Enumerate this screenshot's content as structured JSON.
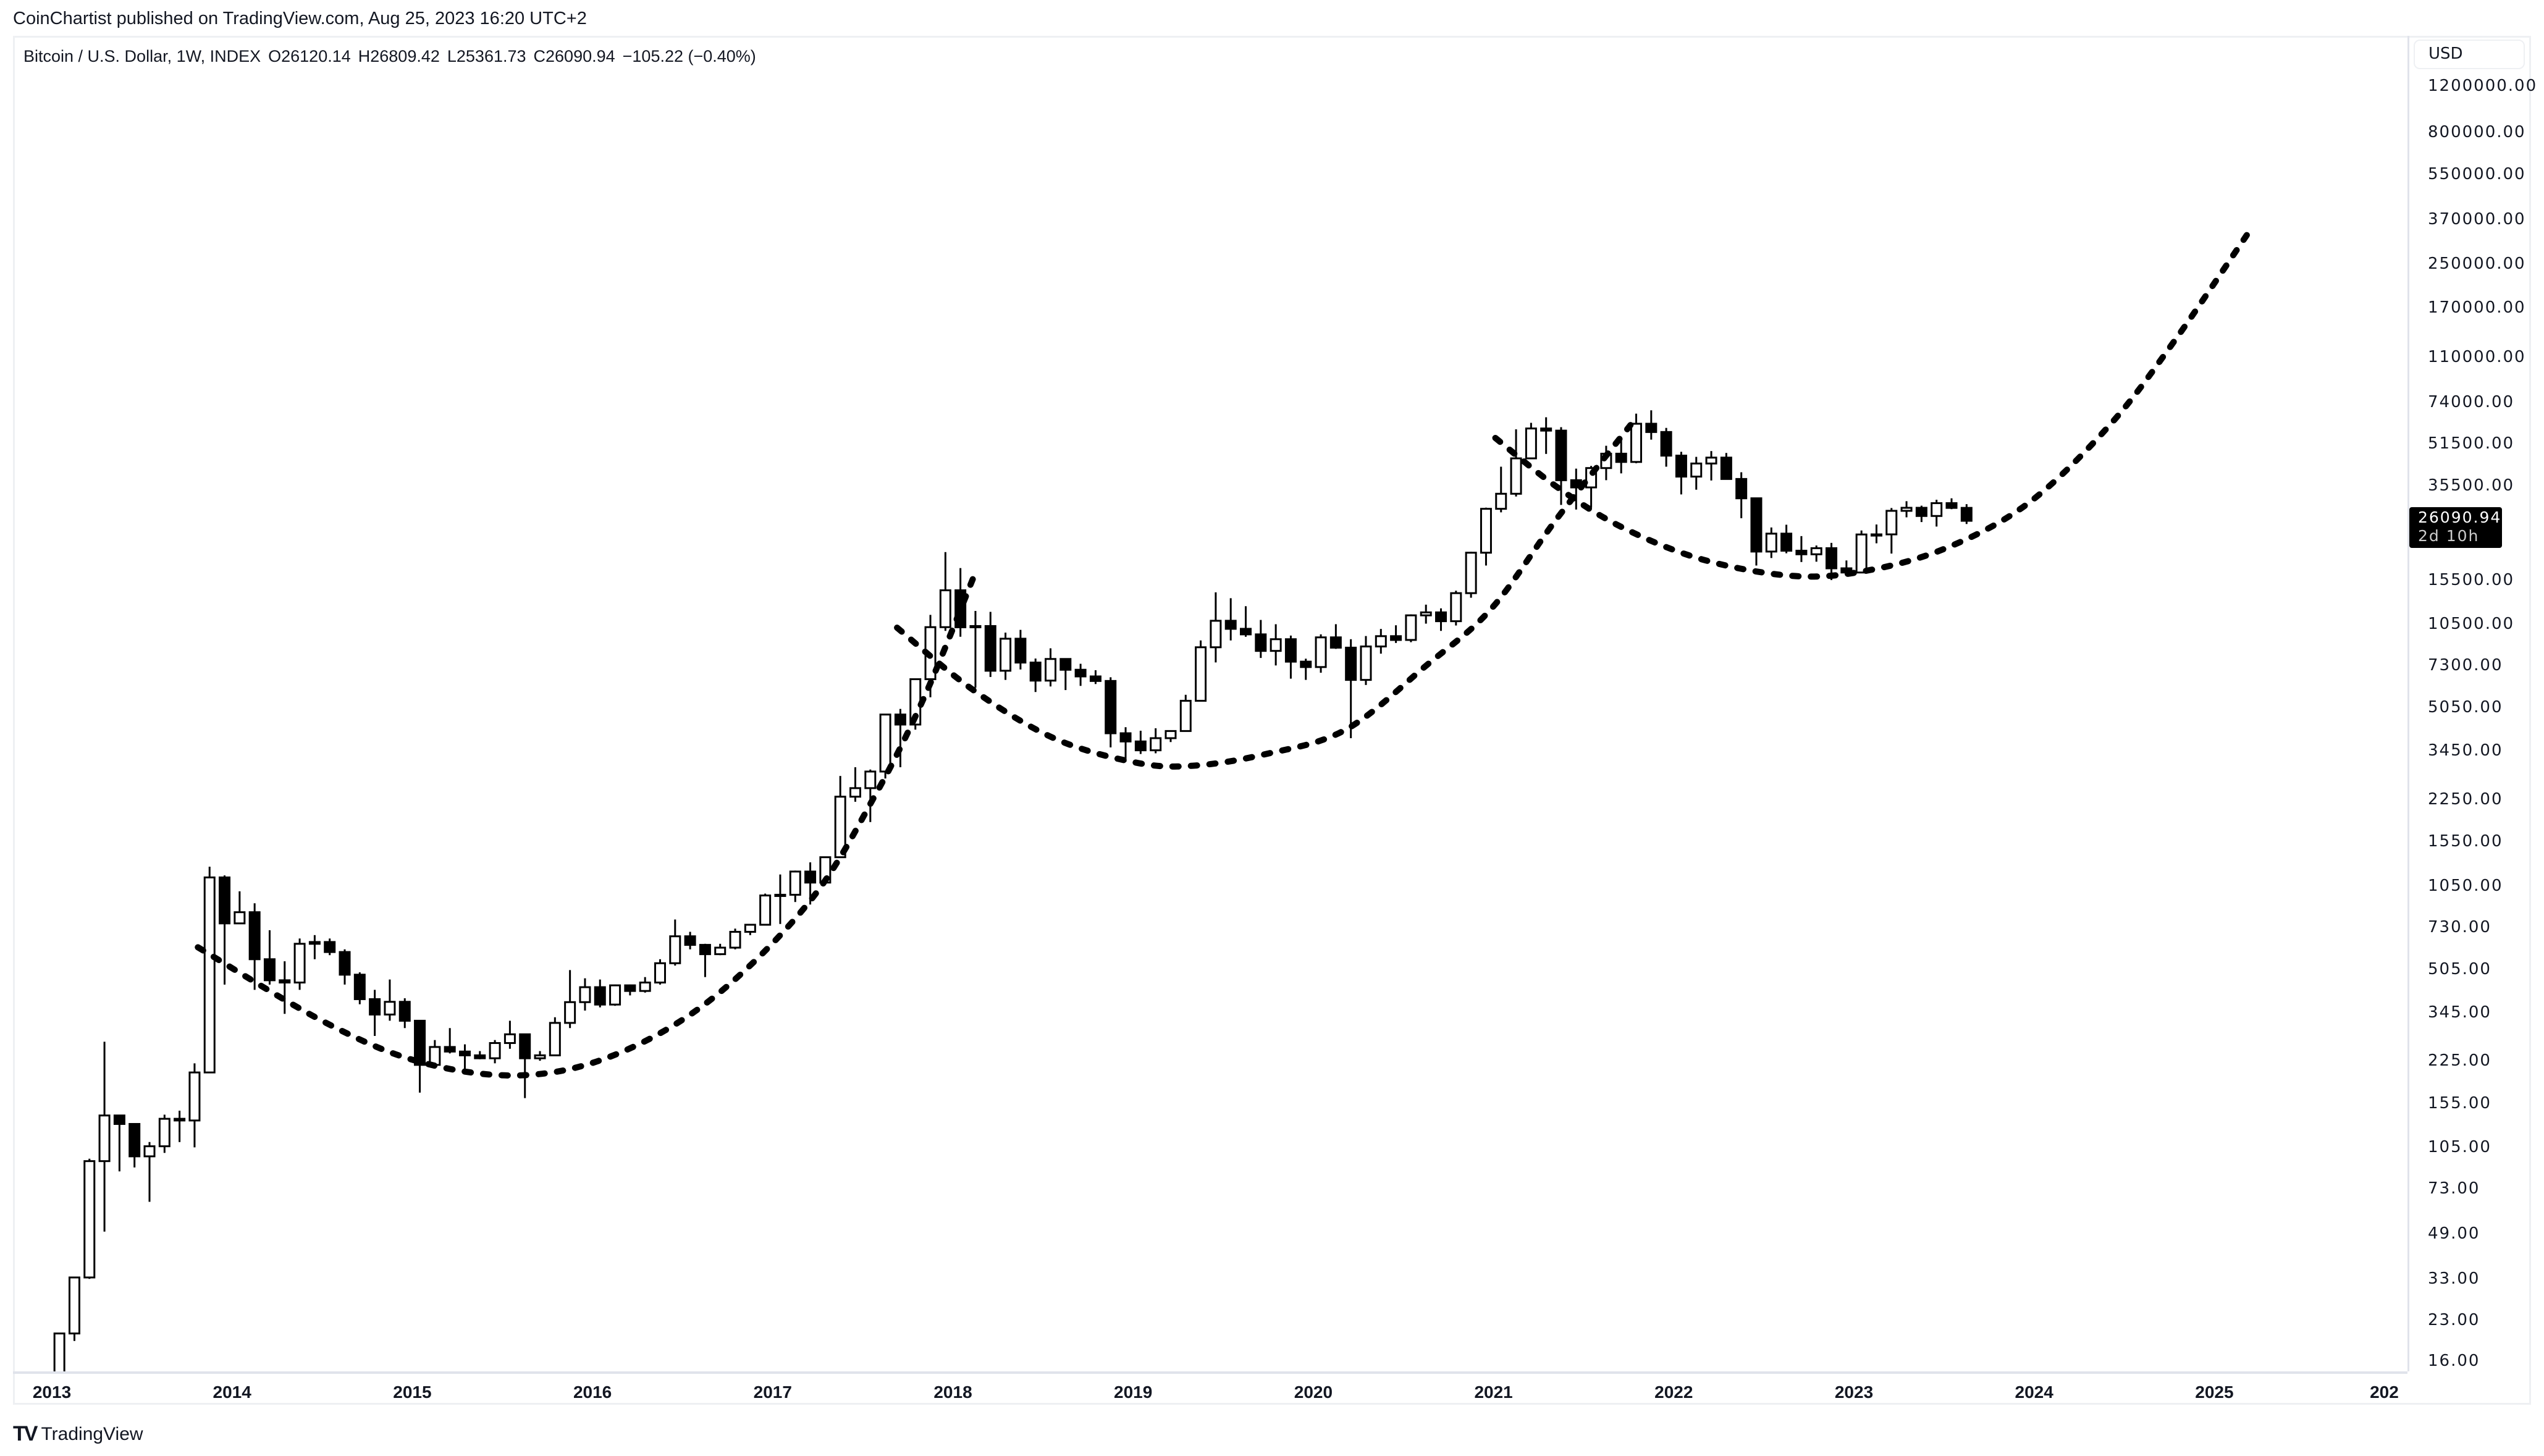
{
  "header": {
    "published": "CoinChartist published on TradingView.com, Aug 25, 2023 16:20 UTC+2"
  },
  "legend": {
    "symbol": "Bitcoin / U.S. Dollar, 1W, INDEX",
    "open": "O26120.14",
    "high": "H26809.42",
    "low": "L25361.73",
    "close": "C26090.94",
    "change": "−105.22 (−0.40%)"
  },
  "price_axis": {
    "currency": "USD",
    "last_price": "26090.94",
    "countdown": "2d 10h"
  },
  "footer": {
    "brand": "TradingView",
    "logo_text": "TV"
  },
  "colors": {
    "candle_up_fill": "#ffffff",
    "candle_border": "#000000",
    "candle_down_fill": "#000000",
    "trend_curve": "#000000",
    "last_price_tag": "#000000"
  },
  "chart_data": {
    "type": "candlestick",
    "scale": "log",
    "ylim": [
      16,
      1200000
    ],
    "xlim": [
      "2012-12",
      "2026-01"
    ],
    "yticks": [
      "1200000.00",
      "800000.00",
      "550000.00",
      "370000.00",
      "250000.00",
      "170000.00",
      "110000.00",
      "74000.00",
      "51500.00",
      "35500.00",
      "15500.00",
      "10500.00",
      "7300.00",
      "5050.00",
      "3450.00",
      "2250.00",
      "1550.00",
      "1050.00",
      "730.00",
      "505.00",
      "345.00",
      "225.00",
      "155.00",
      "105.00",
      "73.00",
      "49.00",
      "33.00",
      "23.00",
      "16.00"
    ],
    "xticks": [
      "2013",
      "2014",
      "2015",
      "2016",
      "2017",
      "2018",
      "2019",
      "2020",
      "2021",
      "2022",
      "2023",
      "2024",
      "2025",
      "202"
    ],
    "grid": false,
    "start": "2013-01",
    "ohlc_monthly_approx": [
      [
        13.5,
        20.4,
        13.2,
        20.4
      ],
      [
        20.4,
        33.4,
        19.1,
        33.4
      ],
      [
        33.4,
        95,
        33,
        93
      ],
      [
        93,
        266,
        50,
        139
      ],
      [
        139,
        139,
        85,
        129
      ],
      [
        129,
        129,
        88,
        97
      ],
      [
        97,
        110,
        65,
        106
      ],
      [
        106,
        140,
        100,
        135
      ],
      [
        135,
        145,
        110,
        133
      ],
      [
        133,
        220,
        105,
        203
      ],
      [
        203,
        1242,
        203,
        1130
      ],
      [
        1130,
        1150,
        440,
        754
      ],
      [
        754,
        1000,
        750,
        832
      ],
      [
        832,
        900,
        420,
        550
      ],
      [
        550,
        710,
        440,
        457
      ],
      [
        457,
        540,
        340,
        448
      ],
      [
        448,
        660,
        420,
        630
      ],
      [
        630,
        680,
        550,
        640
      ],
      [
        640,
        660,
        570,
        586
      ],
      [
        586,
        600,
        440,
        480
      ],
      [
        480,
        490,
        370,
        387
      ],
      [
        387,
        420,
        280,
        338
      ],
      [
        338,
        460,
        320,
        378
      ],
      [
        378,
        390,
        300,
        320
      ],
      [
        320,
        320,
        170,
        217
      ],
      [
        217,
        270,
        210,
        254
      ],
      [
        254,
        300,
        240,
        244
      ],
      [
        244,
        260,
        200,
        236
      ],
      [
        236,
        245,
        228,
        230
      ],
      [
        230,
        270,
        220,
        263
      ],
      [
        263,
        320,
        250,
        284
      ],
      [
        284,
        285,
        162,
        230
      ],
      [
        230,
        245,
        225,
        236
      ],
      [
        236,
        330,
        235,
        314
      ],
      [
        314,
        500,
        300,
        377
      ],
      [
        377,
        465,
        350,
        430
      ],
      [
        430,
        460,
        360,
        369
      ],
      [
        369,
        440,
        365,
        437
      ],
      [
        437,
        440,
        400,
        416
      ],
      [
        416,
        470,
        410,
        448
      ],
      [
        448,
        550,
        440,
        531
      ],
      [
        531,
        780,
        520,
        673
      ],
      [
        673,
        700,
        600,
        624
      ],
      [
        624,
        630,
        470,
        575
      ],
      [
        575,
        630,
        570,
        609
      ],
      [
        609,
        720,
        600,
        700
      ],
      [
        700,
        750,
        680,
        745
      ],
      [
        745,
        980,
        740,
        964
      ],
      [
        964,
        1160,
        750,
        970
      ],
      [
        970,
        1200,
        910,
        1190
      ],
      [
        1190,
        1290,
        890,
        1080
      ],
      [
        1080,
        1350,
        1080,
        1350
      ],
      [
        1350,
        2760,
        1350,
        2300
      ],
      [
        2300,
        2980,
        2200,
        2480
      ],
      [
        2480,
        2920,
        1840,
        2870
      ],
      [
        2870,
        4700,
        2700,
        4740
      ],
      [
        4740,
        4980,
        2980,
        4340
      ],
      [
        4340,
        6450,
        4150,
        6470
      ],
      [
        6470,
        11400,
        5520,
        10230
      ],
      [
        10230,
        19800,
        9900,
        14150
      ],
      [
        14150,
        17200,
        9400,
        10220
      ],
      [
        10220,
        11800,
        6000,
        10330
      ],
      [
        10330,
        11700,
        6600,
        6970
      ],
      [
        6970,
        9750,
        6430,
        9240
      ],
      [
        9240,
        9990,
        7050,
        7490
      ],
      [
        7490,
        7760,
        5780,
        6390
      ],
      [
        6390,
        8490,
        6070,
        7730
      ],
      [
        7730,
        7760,
        5880,
        7030
      ],
      [
        7030,
        7410,
        6100,
        6630
      ],
      [
        6630,
        7000,
        6200,
        6370
      ],
      [
        6370,
        6580,
        3550,
        4020
      ],
      [
        4020,
        4240,
        3130,
        3740
      ],
      [
        3740,
        4110,
        3350,
        3460
      ],
      [
        3460,
        4200,
        3370,
        3850
      ],
      [
        3850,
        4120,
        3720,
        4100
      ],
      [
        4100,
        5640,
        4090,
        5350
      ],
      [
        5350,
        9100,
        5330,
        8570
      ],
      [
        8570,
        13900,
        7500,
        10820
      ],
      [
        10820,
        13200,
        9100,
        10080
      ],
      [
        10080,
        12300,
        9400,
        9600
      ],
      [
        9600,
        10900,
        7800,
        8300
      ],
      [
        8300,
        10500,
        7300,
        9200
      ],
      [
        9200,
        9500,
        6500,
        7550
      ],
      [
        7550,
        7750,
        6430,
        7200
      ],
      [
        7200,
        9600,
        6850,
        9350
      ],
      [
        9350,
        10500,
        8450,
        8540
      ],
      [
        8540,
        9200,
        3850,
        6430
      ],
      [
        6430,
        9460,
        6150,
        8630
      ],
      [
        8630,
        10070,
        8100,
        9450
      ],
      [
        9450,
        10400,
        8900,
        9140
      ],
      [
        9140,
        11450,
        8960,
        11350
      ],
      [
        11350,
        12470,
        10550,
        11650
      ],
      [
        11650,
        12070,
        9900,
        10780
      ],
      [
        10780,
        14100,
        10380,
        13800
      ],
      [
        13800,
        19860,
        13250,
        19700
      ],
      [
        19700,
        29300,
        17600,
        28990
      ],
      [
        28990,
        42000,
        28100,
        33100
      ],
      [
        33100,
        58350,
        32300,
        45200
      ],
      [
        45200,
        61800,
        44900,
        58800
      ],
      [
        58800,
        64900,
        47000,
        57700
      ],
      [
        57700,
        59500,
        30000,
        37300
      ],
      [
        37300,
        41300,
        28800,
        35000
      ],
      [
        35000,
        42300,
        29300,
        41500
      ],
      [
        41500,
        50500,
        37300,
        47100
      ],
      [
        47100,
        52900,
        39600,
        43800
      ],
      [
        43800,
        67000,
        43300,
        61300
      ],
      [
        61300,
        69000,
        53300,
        57000
      ],
      [
        57000,
        59100,
        42000,
        46300
      ],
      [
        46300,
        47900,
        32900,
        38500
      ],
      [
        38500,
        45800,
        34300,
        43200
      ],
      [
        43200,
        48200,
        37200,
        45500
      ],
      [
        45500,
        47400,
        37600,
        37700
      ],
      [
        37700,
        40000,
        26700,
        31800
      ],
      [
        31800,
        31900,
        17600,
        19900
      ],
      [
        19900,
        24600,
        18800,
        23300
      ],
      [
        23300,
        25200,
        19600,
        20050
      ],
      [
        20050,
        22800,
        18150,
        19430
      ],
      [
        19430,
        20990,
        18200,
        20500
      ],
      [
        20500,
        21480,
        15480,
        17170
      ],
      [
        17170,
        18400,
        16260,
        16550
      ],
      [
        16550,
        23950,
        16500,
        23130
      ],
      [
        23130,
        25250,
        21400,
        23150
      ],
      [
        23150,
        29200,
        19550,
        28480
      ],
      [
        28480,
        31000,
        26900,
        29250
      ],
      [
        29250,
        29800,
        25800,
        27220
      ],
      [
        27220,
        31400,
        24800,
        30470
      ],
      [
        30470,
        31800,
        28900,
        29230
      ],
      [
        29230,
        30200,
        25360,
        26090.94
      ]
    ],
    "annotations": [
      {
        "type": "dotted-curve",
        "points": [
          [
            2013.81,
            611
          ],
          [
            2014.51,
            317
          ],
          [
            2015.05,
            222
          ],
          [
            2015.61,
            198
          ],
          [
            2016.13,
            238
          ],
          [
            2016.67,
            392
          ],
          [
            2017.21,
            924
          ],
          [
            2017.57,
            2340
          ],
          [
            2017.84,
            5510
          ],
          [
            2018.11,
            15600
          ]
        ]
      },
      {
        "type": "dotted-curve",
        "points": [
          [
            2017.69,
            10180
          ],
          [
            2018.11,
            5900
          ],
          [
            2018.56,
            3850
          ],
          [
            2019.01,
            3110
          ],
          [
            2019.33,
            3020
          ],
          [
            2019.73,
            3340
          ],
          [
            2020.18,
            4150
          ],
          [
            2020.63,
            7330
          ],
          [
            2020.99,
            12080
          ],
          [
            2021.35,
            26500
          ],
          [
            2021.76,
            60600
          ]
        ]
      },
      {
        "type": "dotted-curve",
        "points": [
          [
            2021.01,
            54100
          ],
          [
            2021.35,
            35200
          ],
          [
            2021.71,
            24700
          ],
          [
            2022.16,
            18550
          ],
          [
            2022.66,
            16060
          ],
          [
            2023.06,
            16770
          ],
          [
            2023.51,
            20500
          ],
          [
            2023.97,
            30550
          ],
          [
            2024.42,
            60650
          ],
          [
            2024.78,
            127500
          ],
          [
            2025.18,
            322600
          ]
        ]
      }
    ]
  }
}
